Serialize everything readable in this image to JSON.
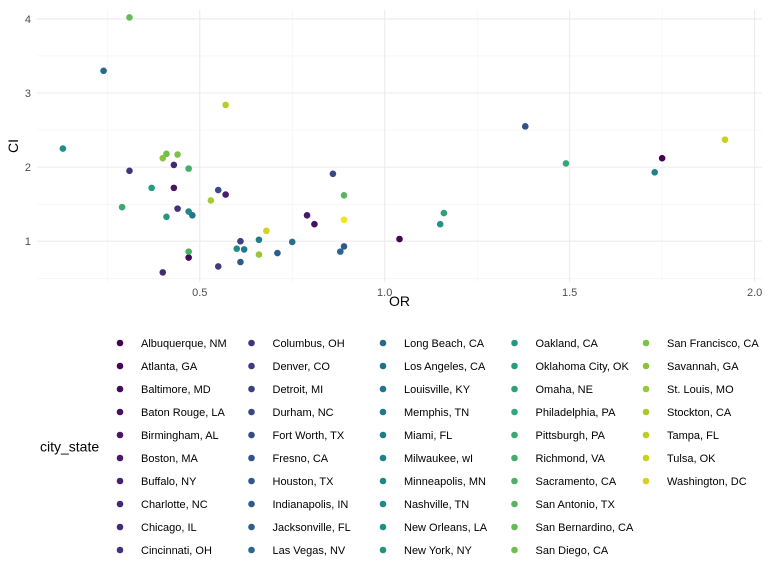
{
  "chart_data": {
    "type": "scatter",
    "xlabel": "OR",
    "ylabel": "CI",
    "xlim": [
      0.06,
      2.02
    ],
    "ylim": [
      0.45,
      4.12
    ],
    "x_ticks": [
      0.5,
      1.0,
      1.5,
      2.0
    ],
    "x_tick_labels": [
      "0.5",
      "1.0",
      "1.5",
      "2.0"
    ],
    "y_ticks": [
      1,
      2,
      3,
      4
    ],
    "y_tick_labels": [
      "1",
      "2",
      "3",
      "4"
    ],
    "grid": true,
    "legend": {
      "title": "city_state",
      "placement": "bottom",
      "columns": 5
    },
    "series": [
      {
        "name": "Albuquerque, NM",
        "color": "#440154",
        "points": [
          [
            1.75,
            2.12
          ]
        ]
      },
      {
        "name": "Atlanta, GA",
        "color": "#450559",
        "points": [
          [
            1.04,
            1.03
          ]
        ]
      },
      {
        "name": "Baltimore, MD",
        "color": "#46085C",
        "points": [
          [
            0.47,
            0.78
          ]
        ]
      },
      {
        "name": "Baton Rouge, LA",
        "color": "#471063",
        "points": [
          [
            0.81,
            1.23
          ]
        ]
      },
      {
        "name": "Birmingham, AL",
        "color": "#471466",
        "points": [
          [
            0.43,
            1.72
          ]
        ]
      },
      {
        "name": "Boston, MA",
        "color": "#46196C",
        "points": [
          [
            0.79,
            1.35
          ]
        ]
      },
      {
        "name": "Buffalo, NY",
        "color": "#46206F",
        "points": [
          [
            0.57,
            1.63
          ]
        ]
      },
      {
        "name": "Charlotte, NC",
        "color": "#452575",
        "points": [
          [
            0.43,
            2.03
          ]
        ]
      },
      {
        "name": "Chicago, IL",
        "color": "#432A77",
        "points": [
          [
            0.4,
            0.58
          ]
        ]
      },
      {
        "name": "Cincinnati, OH",
        "color": "#42317B",
        "points": [
          [
            0.44,
            1.44
          ]
        ]
      },
      {
        "name": "Columbus, OH",
        "color": "#40367E",
        "points": [
          [
            0.31,
            1.95
          ]
        ]
      },
      {
        "name": "Denver, CO",
        "color": "#3E3C81",
        "points": [
          [
            0.55,
            0.66
          ]
        ]
      },
      {
        "name": "Detroit, MI",
        "color": "#3C4183",
        "points": [
          [
            0.61,
            1.0
          ]
        ]
      },
      {
        "name": "Durham, NC",
        "color": "#394785",
        "points": [
          [
            0.86,
            1.91
          ]
        ]
      },
      {
        "name": "Fort Worth, TX",
        "color": "#364C88",
        "points": [
          [
            0.55,
            1.69
          ]
        ]
      },
      {
        "name": "Fresno, CA",
        "color": "#33518A",
        "points": [
          [
            1.38,
            2.55
          ]
        ]
      },
      {
        "name": "Houston, TX",
        "color": "#31578C",
        "points": [
          [
            0.89,
            0.93
          ]
        ]
      },
      {
        "name": "Indianapolis, IN",
        "color": "#2E5B8C",
        "points": [
          [
            0.61,
            0.72
          ]
        ]
      },
      {
        "name": "Jacksonville, FL",
        "color": "#2C5F8D",
        "points": [
          [
            0.71,
            0.84
          ]
        ]
      },
      {
        "name": "Las Vegas, NV",
        "color": "#29658E",
        "points": [
          [
            0.88,
            0.86
          ]
        ]
      },
      {
        "name": "Long Beach, CA",
        "color": "#27698E",
        "points": [
          [
            0.24,
            3.3
          ]
        ]
      },
      {
        "name": "Los Angeles, CA",
        "color": "#246E8E",
        "points": [
          [
            0.75,
            0.99
          ]
        ]
      },
      {
        "name": "Louisville, KY",
        "color": "#22738E",
        "points": [
          [
            0.48,
            1.35
          ]
        ]
      },
      {
        "name": "Memphis, TN",
        "color": "#20788E",
        "points": [
          [
            0.62,
            0.89
          ]
        ]
      },
      {
        "name": "Miami, FL",
        "color": "#1F7C8D",
        "points": [
          [
            0.66,
            1.02
          ]
        ]
      },
      {
        "name": "Milwaukee, wI",
        "color": "#1E818D",
        "points": [
          [
            1.73,
            1.93
          ]
        ]
      },
      {
        "name": "Minneapolis, MN",
        "color": "#1F868B",
        "points": [
          [
            0.47,
            1.4
          ]
        ]
      },
      {
        "name": "Nashville, TN",
        "color": "#1F8A89",
        "points": [
          [
            0.6,
            0.9
          ]
        ]
      },
      {
        "name": "New Orleans, LA",
        "color": "#1F8F88",
        "points": [
          [
            0.13,
            2.25
          ]
        ]
      },
      {
        "name": "New York, NY",
        "color": "#219385",
        "points": [
          [
            1.15,
            1.23
          ]
        ]
      },
      {
        "name": "Oakland, CA",
        "color": "#239882",
        "points": [
          [
            0.41,
            1.33
          ]
        ]
      },
      {
        "name": "Oklahoma City, OK",
        "color": "#279D7F",
        "points": [
          [
            0.37,
            1.72
          ]
        ]
      },
      {
        "name": "Omaha, NE",
        "color": "#2CA17B",
        "points": [
          [
            1.16,
            1.38
          ]
        ]
      },
      {
        "name": "Philadelphia, PA",
        "color": "#32A676",
        "points": [
          [
            1.49,
            2.05
          ]
        ]
      },
      {
        "name": "Pittsburgh, PA",
        "color": "#3AAA71",
        "points": [
          [
            0.29,
            1.46
          ]
        ]
      },
      {
        "name": "Richmond, VA",
        "color": "#43AE6B",
        "points": [
          [
            0.47,
            1.98
          ]
        ]
      },
      {
        "name": "Sacramento, CA",
        "color": "#4DB265",
        "points": [
          [
            0.47,
            0.86
          ]
        ]
      },
      {
        "name": "San Antonio, TX",
        "color": "#58B75E",
        "points": [
          [
            0.89,
            1.62
          ]
        ]
      },
      {
        "name": "San Bernardino, CA",
        "color": "#64BA56",
        "points": [
          [
            0.31,
            4.02
          ]
        ]
      },
      {
        "name": "San Diego, CA",
        "color": "#6FBE4E",
        "points": [
          [
            0.41,
            2.18
          ]
        ]
      },
      {
        "name": "San Francisco, CA",
        "color": "#7CC246",
        "points": [
          [
            0.44,
            2.17
          ]
        ]
      },
      {
        "name": "Savannah, GA",
        "color": "#8AC43D",
        "points": [
          [
            0.4,
            2.12
          ]
        ]
      },
      {
        "name": "St. Louis, MO",
        "color": "#98C834",
        "points": [
          [
            0.66,
            0.82
          ]
        ]
      },
      {
        "name": "Stockton, CA",
        "color": "#A8CB2C",
        "points": [
          [
            0.53,
            1.55
          ]
        ]
      },
      {
        "name": "Tampa, FL",
        "color": "#B8CE25",
        "points": [
          [
            0.57,
            2.84
          ]
        ]
      },
      {
        "name": "Tulsa, OK",
        "color": "#C8D11F",
        "points": [
          [
            1.92,
            2.37
          ]
        ]
      },
      {
        "name": "Washington, DC",
        "color": "#D8D21F",
        "points": [
          [
            0.68,
            1.14
          ]
        ]
      },
      {
        "name": "",
        "color": "#EFE51C",
        "points": [
          [
            0.89,
            1.29
          ]
        ]
      }
    ]
  }
}
